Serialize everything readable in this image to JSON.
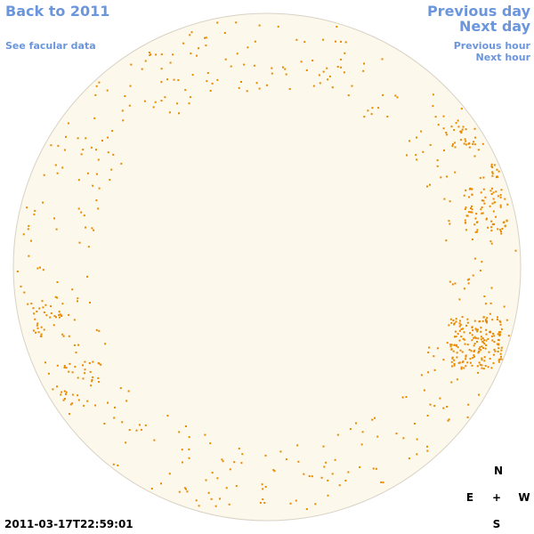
{
  "navigation": {
    "back": "Back to 2011",
    "facular": "See facular data",
    "previous_day": "Previous day",
    "next_day": "Next day",
    "previous_hour": "Previous hour",
    "next_hour": "Next hour"
  },
  "compass": {
    "north": "N",
    "east": "E",
    "center": "+",
    "west": "W",
    "south": "S"
  },
  "timestamp": "2011-03-17T22:59:01"
}
